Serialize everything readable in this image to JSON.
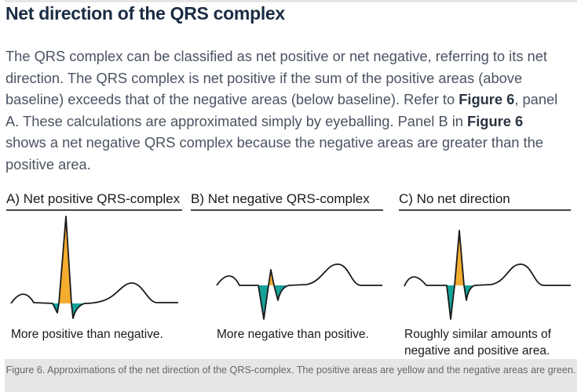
{
  "heading": "Net direction of the QRS complex",
  "paragraph": {
    "l1": "The QRS complex can be classified as net positive or net negative, referring to its net",
    "l2": "direction. The QRS complex is net positive if the sum of the positive areas (above",
    "l3a": "baseline) exceeds that of the negative areas (below baseline). Refer to ",
    "l3b": "Figure 6",
    "l3c": ", panel",
    "l4a": "A. These calculations are approximated simply by eyeballing. Panel B in ",
    "l4b": "Figure 6",
    "l5": "shows a net negative QRS complex because the negative areas are greater than the",
    "l6": "positive area."
  },
  "figure": {
    "panels": [
      {
        "title": "A) Net positive QRS-complex",
        "caption": "More positive than negative."
      },
      {
        "title": "B) Net negative QRS-complex",
        "caption": "More negative than positive."
      },
      {
        "title": "C) No net direction",
        "caption_l1": "Roughly similar amounts of",
        "caption_l2": "negative and positive area."
      }
    ],
    "caption": "Figure 6. Approximations of the net direction of the QRS-complex. The positive areas are yellow and the negative areas are green.",
    "colors": {
      "positive": "#f5ad2f",
      "negative": "#14a39a",
      "line": "#1a1a1a"
    }
  }
}
